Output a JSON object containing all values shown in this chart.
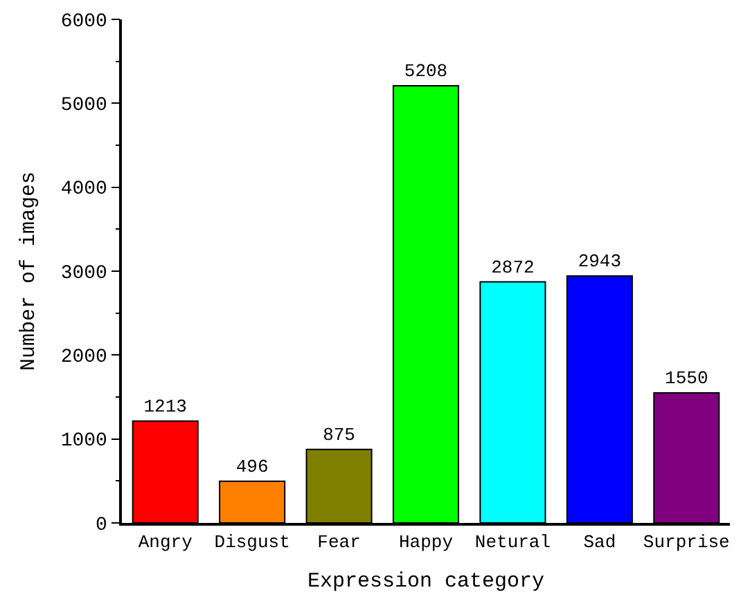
{
  "chart_data": {
    "type": "bar",
    "xlabel": "Expression category",
    "ylabel": "Number of images",
    "categories": [
      "Angry",
      "Disgust",
      "Fear",
      "Happy",
      "Netural",
      "Sad",
      "Surprise"
    ],
    "values": [
      1213,
      496,
      875,
      5208,
      2872,
      2943,
      1550
    ],
    "colors": [
      "#ff0000",
      "#ff8000",
      "#808000",
      "#00ff00",
      "#00ffff",
      "#0000ff",
      "#800080"
    ],
    "ylim": [
      0,
      6000
    ],
    "yticks": [
      0,
      1000,
      2000,
      3000,
      4000,
      5000,
      6000
    ],
    "data_labels": true
  }
}
